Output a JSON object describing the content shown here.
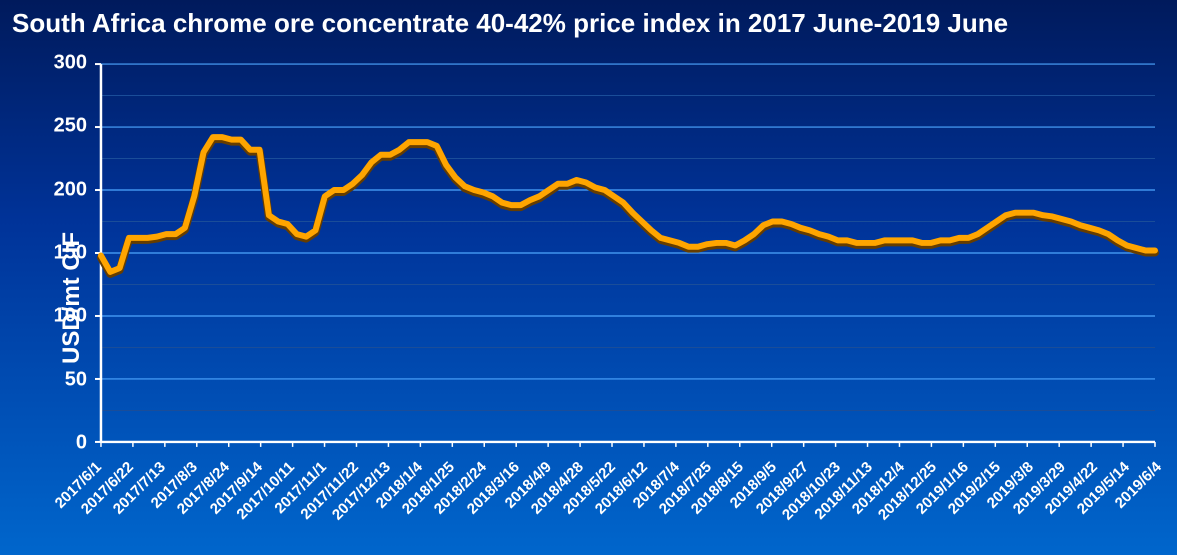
{
  "chart": {
    "type": "line",
    "title": "South Africa chrome ore concentrate 40-42% price index in 2017 June-2019 June",
    "ylabel": "USD/mt CIF",
    "title_fontsize": 26,
    "label_fontsize": 24,
    "tick_fontsize": 20,
    "xtick_fontsize": 15,
    "background_gradient": [
      "#001a5c",
      "#003399",
      "#0066cc"
    ],
    "grid_color": "#4da6ff",
    "grid_dark_color": "#1a4d99",
    "axis_color": "#ffffff",
    "line_color": "#ffa500",
    "line_width": 6,
    "text_color": "#ffffff",
    "ylim": [
      0,
      300
    ],
    "ytick_step": 50,
    "yticks": [
      0,
      50,
      100,
      150,
      200,
      250,
      300
    ],
    "x_labels": [
      "2017/6/1",
      "2017/6/22",
      "2017/7/13",
      "2017/8/3",
      "2017/8/24",
      "2017/9/14",
      "2017/10/11",
      "2017/11/1",
      "2017/11/22",
      "2017/12/13",
      "2018/1/4",
      "2018/1/25",
      "2018/2/24",
      "2018/3/16",
      "2018/4/9",
      "2018/4/28",
      "2018/5/22",
      "2018/6/12",
      "2018/7/4",
      "2018/7/25",
      "2018/8/15",
      "2018/9/5",
      "2018/9/27",
      "2018/10/23",
      "2018/11/13",
      "2018/12/4",
      "2018/12/25",
      "2019/1/16",
      "2019/2/15",
      "2019/3/8",
      "2019/3/29",
      "2019/4/22",
      "2019/5/14",
      "2019/6/4"
    ],
    "values": [
      148,
      135,
      138,
      162,
      162,
      162,
      163,
      165,
      165,
      170,
      195,
      230,
      242,
      242,
      240,
      240,
      232,
      232,
      180,
      175,
      173,
      165,
      163,
      168,
      195,
      200,
      200,
      205,
      212,
      222,
      228,
      228,
      232,
      238,
      238,
      238,
      235,
      220,
      210,
      203,
      200,
      198,
      195,
      190,
      188,
      188,
      192,
      195,
      200,
      205,
      205,
      208,
      206,
      202,
      200,
      195,
      190,
      182,
      175,
      168,
      162,
      160,
      158,
      155,
      155,
      157,
      158,
      158,
      156,
      160,
      165,
      172,
      175,
      175,
      173,
      170,
      168,
      165,
      163,
      160,
      160,
      158,
      158,
      158,
      160,
      160,
      160,
      160,
      158,
      158,
      160,
      160,
      162,
      162,
      165,
      170,
      175,
      180,
      182,
      182,
      182,
      180,
      179,
      177,
      175,
      172,
      170,
      168,
      165,
      160,
      156,
      154,
      152,
      152
    ]
  }
}
